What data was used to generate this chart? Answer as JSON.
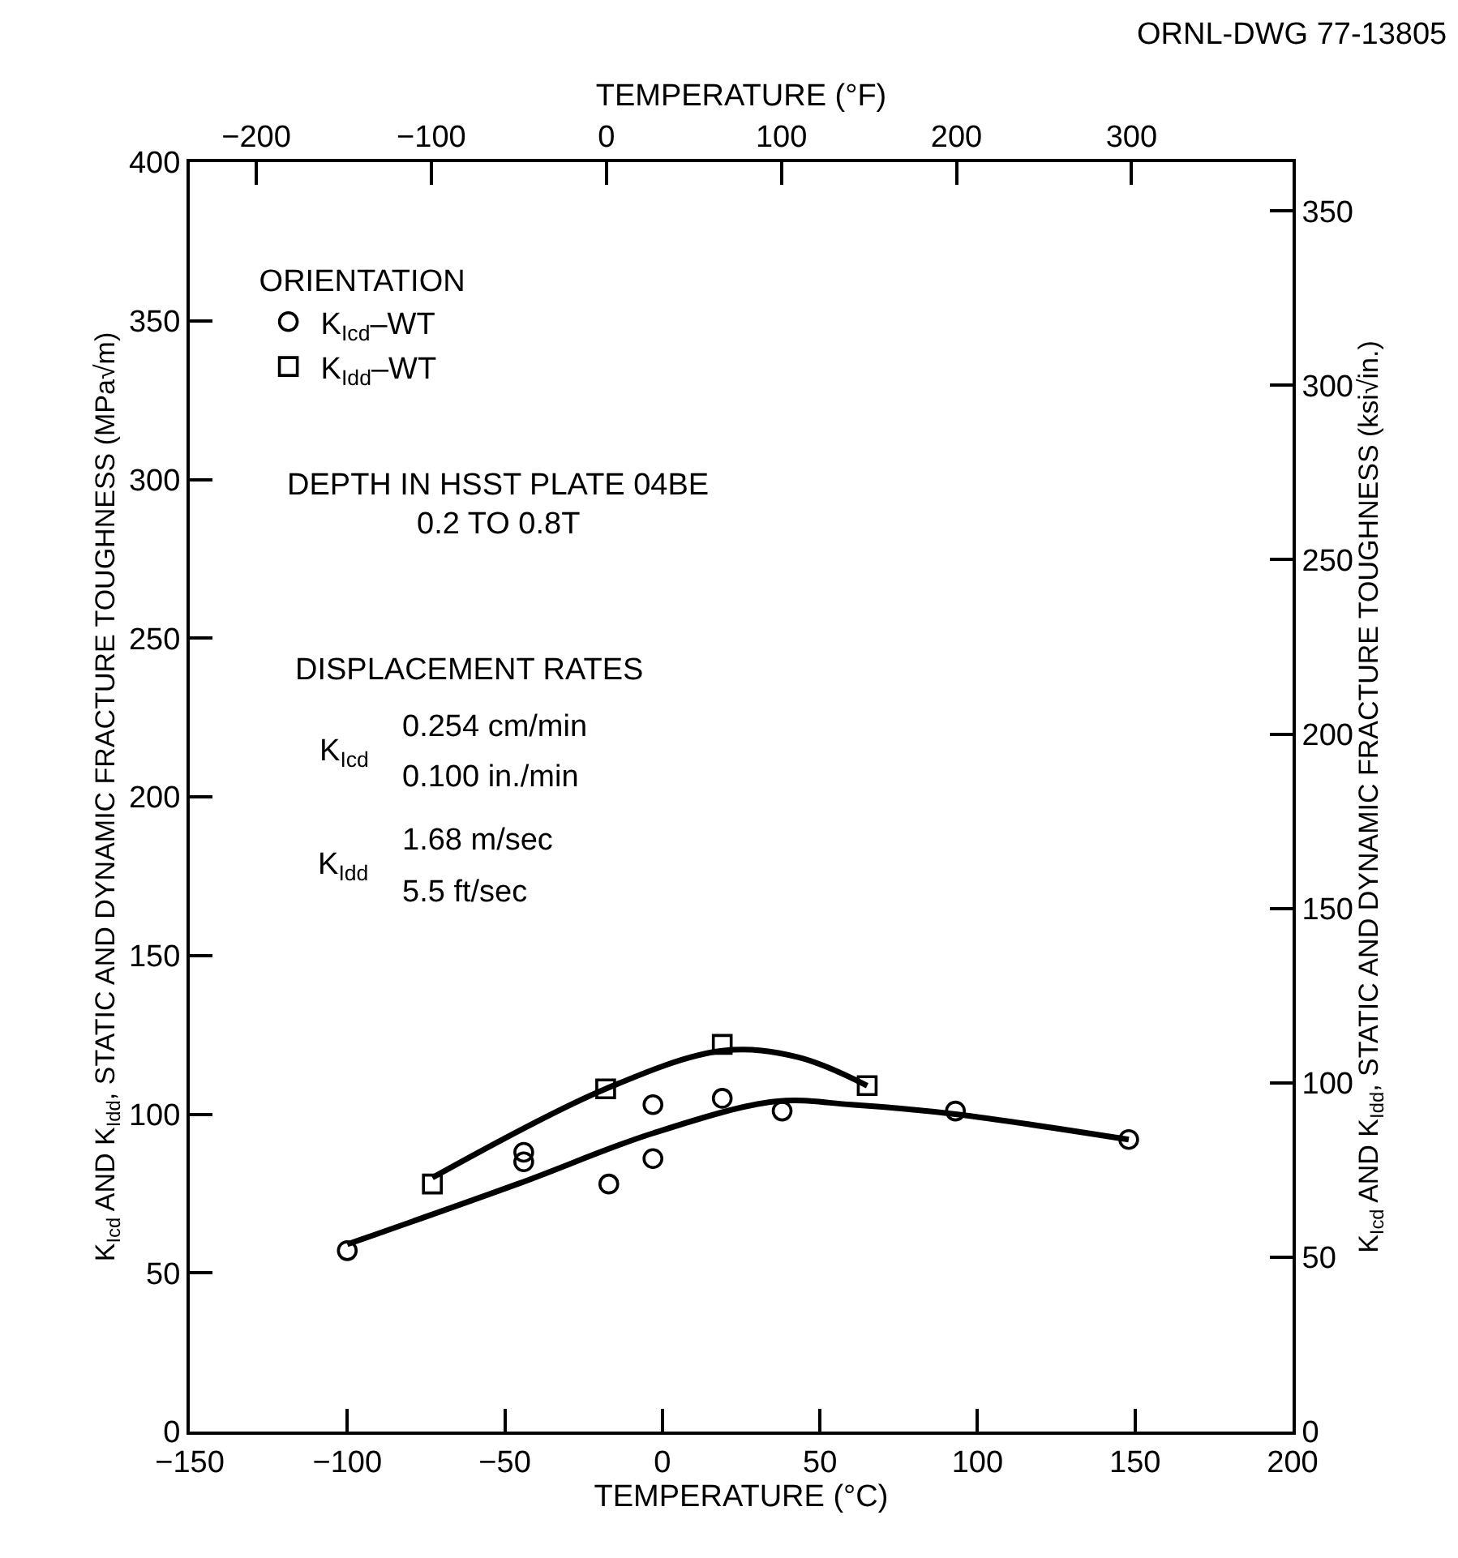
{
  "chart_data": {
    "type": "scatter",
    "xlabel": "TEMPERATURE (°C)",
    "x2label": "TEMPERATURE (°F)",
    "ylabel": "K$_{Icd}$ AND K$_{Idd}$, STATIC AND DYNAMIC FRACTURE TOUGHNESS (MPa√m)",
    "y2label": "K$_{Icd}$ AND K$_{Idd}$, STATIC AND DYNAMIC FRACTURE TOUGHNESS (ksi√in.)",
    "legend_title": "ORIENTATION",
    "legend": "top left",
    "xlim": [
      -150,
      200
    ],
    "xticks": [
      -150,
      -100,
      -50,
      0,
      50,
      100,
      150,
      200
    ],
    "ylim": [
      0,
      400
    ],
    "yticks": [
      0,
      50,
      100,
      150,
      200,
      250,
      300,
      350,
      400
    ],
    "x2lim": [
      -238,
      392
    ],
    "x2ticks": [
      -200,
      -100,
      0,
      100,
      200,
      300
    ],
    "y2lim": [
      0,
      364
    ],
    "y2ticks": [
      0,
      50,
      100,
      150,
      200,
      250,
      300,
      350
    ],
    "series": [
      {
        "name": "K$_{Icd}$–WT",
        "marker": "circle",
        "color": "#000000",
        "x": [
          -100,
          -44,
          -44,
          -17,
          -3,
          -3,
          19,
          38,
          93,
          148
        ],
        "values": [
          57,
          88,
          85,
          78,
          103,
          86,
          105,
          101,
          101,
          92
        ]
      },
      {
        "name": "K$_{Idd}$–WT",
        "marker": "square",
        "color": "#000000",
        "x": [
          -73,
          -18,
          19,
          65
        ],
        "values": [
          78,
          108,
          122,
          109
        ]
      },
      {
        "type": "line",
        "marker": "none",
        "line_style": "solid",
        "color": "#000000",
        "x": [
          -100,
          -46,
          -3,
          36,
          60,
          93,
          148
        ],
        "values": [
          59,
          78,
          94,
          104,
          103,
          100,
          92
        ]
      },
      {
        "type": "line",
        "marker": "none",
        "line_style": "solid",
        "color": "#000000",
        "x": [
          -73,
          -18,
          19,
          43,
          65
        ],
        "values": [
          80,
          108,
          120,
          118,
          109
        ]
      }
    ],
    "annotations": [
      "ORNL-DWG 77-13805",
      "DEPTH IN HSST PLATE 04BE",
      "0.2 TO 0.8T",
      "DISPLACEMENT RATES",
      "K$_{Icd}$",
      "0.254 cm/min",
      "0.100 in./min",
      "K$_{Idd}$",
      "1.68 m/sec",
      "5.5 ft/sec"
    ]
  }
}
